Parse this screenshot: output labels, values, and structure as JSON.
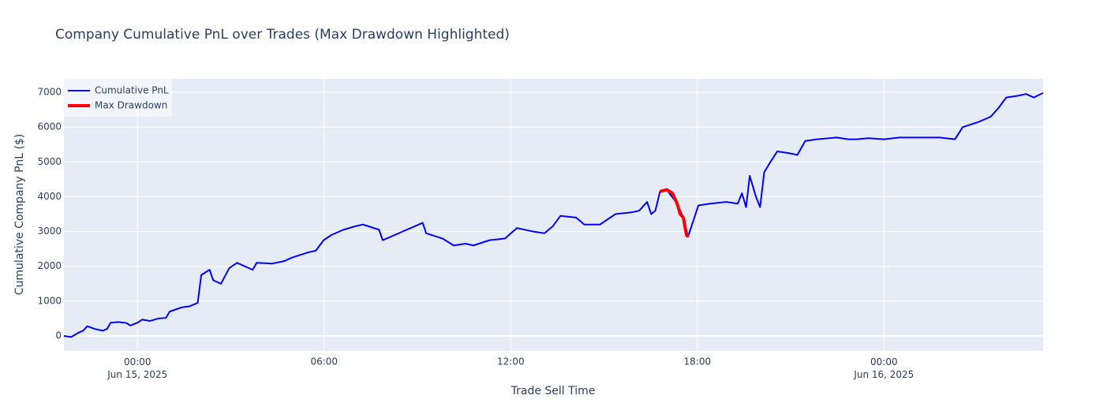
{
  "chart_data": {
    "type": "line",
    "title": "Company Cumulative PnL over Trades (Max Drawdown Highlighted)",
    "x_label": "Trade Sell Time",
    "y_label": "Cumulative Company PnL ($)",
    "xlim": [
      "2025-06-14 21:38",
      "2025-06-16 05:07"
    ],
    "ylim": [
      -430,
      7385
    ],
    "xticks": [
      {
        "value": "2025-06-15 00:00",
        "label": "00:00\nJun 15, 2025"
      },
      {
        "value": "2025-06-15 06:00",
        "label": "06:00"
      },
      {
        "value": "2025-06-15 12:00",
        "label": "12:00"
      },
      {
        "value": "2025-06-15 18:00",
        "label": "18:00"
      },
      {
        "value": "2025-06-16 00:00",
        "label": "00:00\nJun 16, 2025"
      }
    ],
    "yticks": [
      0,
      1000,
      2000,
      3000,
      4000,
      5000,
      6000,
      7000
    ],
    "grid": true,
    "legend": "top-left",
    "series": [
      {
        "name": "Cumulative PnL",
        "color": "#0000ff",
        "width": 2,
        "x": [
          "2025-06-14 21:38",
          "2025-06-14 21:52",
          "2025-06-14 22:07",
          "2025-06-14 22:15",
          "2025-06-14 22:23",
          "2025-06-14 22:38",
          "2025-06-14 22:53",
          "2025-06-14 23:01",
          "2025-06-14 23:08",
          "2025-06-14 23:23",
          "2025-06-14 23:39",
          "2025-06-14 23:46",
          "2025-06-15 00:00",
          "2025-06-15 00:09",
          "2025-06-15 00:24",
          "2025-06-15 00:40",
          "2025-06-15 00:55",
          "2025-06-15 01:02",
          "2025-06-15 01:25",
          "2025-06-15 01:40",
          "2025-06-15 01:56",
          "2025-06-15 02:03",
          "2025-06-15 02:19",
          "2025-06-15 02:26",
          "2025-06-15 02:41",
          "2025-06-15 02:57",
          "2025-06-15 03:12",
          "2025-06-15 03:42",
          "2025-06-15 03:50",
          "2025-06-15 04:20",
          "2025-06-15 04:43",
          "2025-06-15 04:58",
          "2025-06-15 05:29",
          "2025-06-15 05:44",
          "2025-06-15 05:59",
          "2025-06-15 06:14",
          "2025-06-15 06:37",
          "2025-06-15 07:00",
          "2025-06-15 07:15",
          "2025-06-15 07:46",
          "2025-06-15 07:53",
          "2025-06-15 08:16",
          "2025-06-15 08:47",
          "2025-06-15 09:10",
          "2025-06-15 09:17",
          "2025-06-15 09:48",
          "2025-06-15 10:10",
          "2025-06-15 10:33",
          "2025-06-15 10:48",
          "2025-06-15 11:19",
          "2025-06-15 11:49",
          "2025-06-15 12:12",
          "2025-06-15 12:43",
          "2025-06-15 13:05",
          "2025-06-15 13:21",
          "2025-06-15 13:36",
          "2025-06-15 14:06",
          "2025-06-15 14:22",
          "2025-06-15 14:52",
          "2025-06-15 15:22",
          "2025-06-15 15:53",
          "2025-06-15 16:08",
          "2025-06-15 16:23",
          "2025-06-15 16:31",
          "2025-06-15 16:39",
          "2025-06-15 16:48",
          "2025-06-15 17:01",
          "2025-06-15 17:21",
          "2025-06-15 17:33",
          "2025-06-15 17:42",
          "2025-06-15 17:52",
          "2025-06-15 18:02",
          "2025-06-15 18:25",
          "2025-06-15 18:56",
          "2025-06-15 19:18",
          "2025-06-15 19:26",
          "2025-06-15 19:34",
          "2025-06-15 19:41",
          "2025-06-15 19:53",
          "2025-06-15 20:01",
          "2025-06-15 20:09",
          "2025-06-15 20:19",
          "2025-06-15 20:34",
          "2025-06-15 20:57",
          "2025-06-15 21:13",
          "2025-06-15 21:28",
          "2025-06-15 21:51",
          "2025-06-15 22:29",
          "2025-06-15 22:51",
          "2025-06-15 23:07",
          "2025-06-15 23:30",
          "2025-06-16 00:00",
          "2025-06-16 00:30",
          "2025-06-16 01:01",
          "2025-06-16 01:47",
          "2025-06-16 02:17",
          "2025-06-16 02:32",
          "2025-06-16 03:03",
          "2025-06-16 03:26",
          "2025-06-16 03:41",
          "2025-06-16 03:56",
          "2025-06-16 04:19",
          "2025-06-16 04:34",
          "2025-06-16 04:49",
          "2025-06-16 05:07"
        ],
        "values": [
          0,
          -30,
          100,
          150,
          280,
          200,
          150,
          200,
          380,
          400,
          370,
          300,
          380,
          470,
          430,
          500,
          520,
          700,
          820,
          850,
          950,
          1750,
          1900,
          1600,
          1500,
          1950,
          2100,
          1900,
          2100,
          2080,
          2150,
          2250,
          2400,
          2450,
          2750,
          2900,
          3050,
          3150,
          3200,
          3050,
          2750,
          2900,
          3100,
          3250,
          2950,
          2800,
          2600,
          2650,
          2600,
          2750,
          2800,
          3100,
          3000,
          2950,
          3150,
          3450,
          3400,
          3200,
          3200,
          3500,
          3550,
          3600,
          3850,
          3500,
          3600,
          4150,
          4200,
          3800,
          3400,
          2850,
          3300,
          3750,
          3800,
          3850,
          3800,
          4100,
          3700,
          4600,
          4000,
          3700,
          4700,
          4950,
          5300,
          5250,
          5200,
          5600,
          5650,
          5700,
          5650,
          5650,
          5680,
          5650,
          5700,
          5700,
          5700,
          5650,
          6000,
          6150,
          6300,
          6550,
          6850,
          6900,
          6950,
          6850,
          6980
        ]
      },
      {
        "name": "Max Drawdown",
        "color": "#ff0000",
        "width": 4,
        "x": [
          "2025-06-15 16:48",
          "2025-06-15 17:01",
          "2025-06-15 17:12",
          "2025-06-15 17:21",
          "2025-06-15 17:27",
          "2025-06-15 17:33",
          "2025-06-15 17:39",
          "2025-06-15 17:42"
        ],
        "values": [
          4150,
          4200,
          4100,
          3800,
          3500,
          3400,
          2900,
          2850
        ]
      }
    ]
  }
}
